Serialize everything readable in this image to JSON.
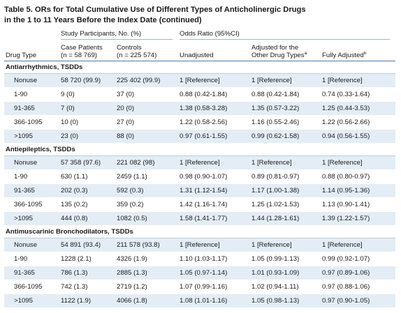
{
  "title": "Table 5. ORs for Total Cumulative Use of Different Types of Anticholinergic Drugs\nin the 1 to 11 Years Before the Index Date (continued)",
  "header": {
    "group_participants": "Study Participants, No. (%)",
    "group_or": "Odds Ratio (95%CI)",
    "drug_type": "Drug Type",
    "cases_line1": "Case Patients",
    "cases_line2": "(n = 58 769)",
    "controls_line1": "Controls",
    "controls_line2": "(n = 225 574)",
    "unadjusted": "Unadjusted",
    "adjusted_line1": "Adjusted for the",
    "adjusted_line2": "Other Drug Types",
    "adjusted_sup": "a",
    "fully": "Fully Adjusted",
    "fully_sup": "b"
  },
  "sections": [
    {
      "label": "Antiarrhythmics, TSDDs",
      "rows": [
        [
          "Nonuse",
          "58 720 (99.9)",
          "225 402 (99.9)",
          "1 [Reference]",
          "1 [Reference]",
          "1 [Reference]"
        ],
        [
          "1-90",
          "9 (0)",
          "37 (0)",
          "0.88 (0.42-1.84)",
          "0.88 (0.42-1.84)",
          "0.74 (0.33-1.64)"
        ],
        [
          "91-365",
          "7 (0)",
          "20 (0)",
          "1.38 (0.58-3.28)",
          "1.35 (0.57-3.22)",
          "1.25 (0.44-3.53)"
        ],
        [
          "366-1095",
          "10 (0)",
          "27 (0)",
          "1.22 (0.58-2.56)",
          "1.16 (0.55-2.46)",
          "1.22 (0.56-2.66)"
        ],
        [
          ">1095",
          "23 (0)",
          "88 (0)",
          "0.97 (0.61-1.55)",
          "0.99 (0.62-1.58)",
          "0.94 (0.56-1.55)"
        ]
      ]
    },
    {
      "label": "Antiepileptics, TSDDs",
      "rows": [
        [
          "Nonuse",
          "57 358 (97.6)",
          "221 082 (98)",
          "1 [Reference]",
          "1 [Reference]",
          "1 [Reference]"
        ],
        [
          "1-90",
          "630 (1.1)",
          "2459 (1.1)",
          "0.98 (0.90-1.07)",
          "0.89 (0.81-0.97)",
          "0.88 (0.80-0.97)"
        ],
        [
          "91-365",
          "202 (0.3)",
          "592 (0.3)",
          "1.31 (1.12-1.54)",
          "1.17 (1.00-1.38)",
          "1.14 (0.95-1.36)"
        ],
        [
          "366-1095",
          "135 (0.2)",
          "359 (0.2)",
          "1.42 (1.16-1.74)",
          "1.25 (1.02-1.53)",
          "1.13 (0.90-1.41)"
        ],
        [
          ">1095",
          "444 (0.8)",
          "1082 (0.5)",
          "1.58 (1.41-1.77)",
          "1.44 (1.28-1.61)",
          "1.39 (1.22-1.57)"
        ]
      ]
    },
    {
      "label": "Antimuscarinic Bronchodilators, TSDDs",
      "rows": [
        [
          "Nonuse",
          "54 891 (93.4)",
          "211 578 (93.8)",
          "1 [Reference]",
          "1 [Reference]",
          "1 [Reference]"
        ],
        [
          "1-90",
          "1228 (2.1)",
          "4326 (1.9)",
          "1.10 (1.03-1.17)",
          "1.05 (0.99-1.13)",
          "0.99 (0.92-1.07)"
        ],
        [
          "91-365",
          "786 (1.3)",
          "2885 (1.3)",
          "1.05 (0.97-1.14)",
          "1.01 (0.93-1.09)",
          "0.97 (0.89-1.06)"
        ],
        [
          "366-1095",
          "742 (1.3)",
          "2719 (1.2)",
          "1.07 (0.99-1.16)",
          "1.02 (0.94-1.11)",
          "0.97 (0.88-1.06)"
        ],
        [
          ">1095",
          "1122 (1.9)",
          "4066 (1.8)",
          "1.08 (1.01-1.16)",
          "1.05 (0.98-1.13)",
          "0.97 (0.90-1.05)"
        ]
      ]
    }
  ]
}
